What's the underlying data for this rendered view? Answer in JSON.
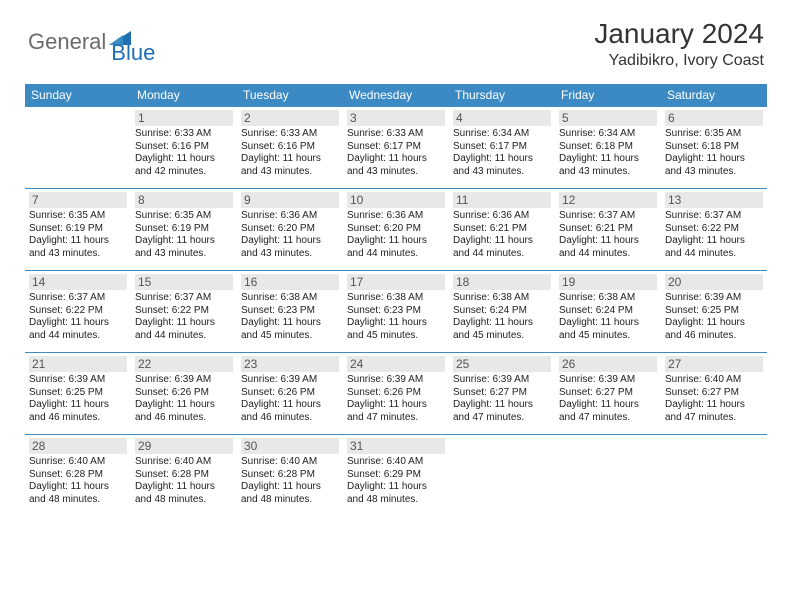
{
  "logo": {
    "text1": "General",
    "text2": "Blue"
  },
  "title": "January 2024",
  "location": "Yadibikro, Ivory Coast",
  "colors": {
    "header_bg": "#3b8ac4",
    "header_text": "#ffffff",
    "cell_border": "#3b8ac4",
    "daynum_bg": "#e8e8e8",
    "daynum_text": "#555555",
    "body_text": "#222222",
    "logo_gray": "#6b6b6b",
    "logo_blue": "#1f6fb2"
  },
  "fonts": {
    "title_size": 28,
    "location_size": 16,
    "dayhead_size": 12,
    "daynum_size": 12,
    "info_size": 10
  },
  "weekdays": [
    "Sunday",
    "Monday",
    "Tuesday",
    "Wednesday",
    "Thursday",
    "Friday",
    "Saturday"
  ],
  "weeks": [
    [
      null,
      {
        "n": "1",
        "sr": "6:33 AM",
        "ss": "6:16 PM",
        "dl": "11 hours and 42 minutes."
      },
      {
        "n": "2",
        "sr": "6:33 AM",
        "ss": "6:16 PM",
        "dl": "11 hours and 43 minutes."
      },
      {
        "n": "3",
        "sr": "6:33 AM",
        "ss": "6:17 PM",
        "dl": "11 hours and 43 minutes."
      },
      {
        "n": "4",
        "sr": "6:34 AM",
        "ss": "6:17 PM",
        "dl": "11 hours and 43 minutes."
      },
      {
        "n": "5",
        "sr": "6:34 AM",
        "ss": "6:18 PM",
        "dl": "11 hours and 43 minutes."
      },
      {
        "n": "6",
        "sr": "6:35 AM",
        "ss": "6:18 PM",
        "dl": "11 hours and 43 minutes."
      }
    ],
    [
      {
        "n": "7",
        "sr": "6:35 AM",
        "ss": "6:19 PM",
        "dl": "11 hours and 43 minutes."
      },
      {
        "n": "8",
        "sr": "6:35 AM",
        "ss": "6:19 PM",
        "dl": "11 hours and 43 minutes."
      },
      {
        "n": "9",
        "sr": "6:36 AM",
        "ss": "6:20 PM",
        "dl": "11 hours and 43 minutes."
      },
      {
        "n": "10",
        "sr": "6:36 AM",
        "ss": "6:20 PM",
        "dl": "11 hours and 44 minutes."
      },
      {
        "n": "11",
        "sr": "6:36 AM",
        "ss": "6:21 PM",
        "dl": "11 hours and 44 minutes."
      },
      {
        "n": "12",
        "sr": "6:37 AM",
        "ss": "6:21 PM",
        "dl": "11 hours and 44 minutes."
      },
      {
        "n": "13",
        "sr": "6:37 AM",
        "ss": "6:22 PM",
        "dl": "11 hours and 44 minutes."
      }
    ],
    [
      {
        "n": "14",
        "sr": "6:37 AM",
        "ss": "6:22 PM",
        "dl": "11 hours and 44 minutes."
      },
      {
        "n": "15",
        "sr": "6:37 AM",
        "ss": "6:22 PM",
        "dl": "11 hours and 44 minutes."
      },
      {
        "n": "16",
        "sr": "6:38 AM",
        "ss": "6:23 PM",
        "dl": "11 hours and 45 minutes."
      },
      {
        "n": "17",
        "sr": "6:38 AM",
        "ss": "6:23 PM",
        "dl": "11 hours and 45 minutes."
      },
      {
        "n": "18",
        "sr": "6:38 AM",
        "ss": "6:24 PM",
        "dl": "11 hours and 45 minutes."
      },
      {
        "n": "19",
        "sr": "6:38 AM",
        "ss": "6:24 PM",
        "dl": "11 hours and 45 minutes."
      },
      {
        "n": "20",
        "sr": "6:39 AM",
        "ss": "6:25 PM",
        "dl": "11 hours and 46 minutes."
      }
    ],
    [
      {
        "n": "21",
        "sr": "6:39 AM",
        "ss": "6:25 PM",
        "dl": "11 hours and 46 minutes."
      },
      {
        "n": "22",
        "sr": "6:39 AM",
        "ss": "6:26 PM",
        "dl": "11 hours and 46 minutes."
      },
      {
        "n": "23",
        "sr": "6:39 AM",
        "ss": "6:26 PM",
        "dl": "11 hours and 46 minutes."
      },
      {
        "n": "24",
        "sr": "6:39 AM",
        "ss": "6:26 PM",
        "dl": "11 hours and 47 minutes."
      },
      {
        "n": "25",
        "sr": "6:39 AM",
        "ss": "6:27 PM",
        "dl": "11 hours and 47 minutes."
      },
      {
        "n": "26",
        "sr": "6:39 AM",
        "ss": "6:27 PM",
        "dl": "11 hours and 47 minutes."
      },
      {
        "n": "27",
        "sr": "6:40 AM",
        "ss": "6:27 PM",
        "dl": "11 hours and 47 minutes."
      }
    ],
    [
      {
        "n": "28",
        "sr": "6:40 AM",
        "ss": "6:28 PM",
        "dl": "11 hours and 48 minutes."
      },
      {
        "n": "29",
        "sr": "6:40 AM",
        "ss": "6:28 PM",
        "dl": "11 hours and 48 minutes."
      },
      {
        "n": "30",
        "sr": "6:40 AM",
        "ss": "6:28 PM",
        "dl": "11 hours and 48 minutes."
      },
      {
        "n": "31",
        "sr": "6:40 AM",
        "ss": "6:29 PM",
        "dl": "11 hours and 48 minutes."
      },
      null,
      null,
      null
    ]
  ],
  "labels": {
    "sunrise": "Sunrise:",
    "sunset": "Sunset:",
    "daylight": "Daylight:"
  }
}
